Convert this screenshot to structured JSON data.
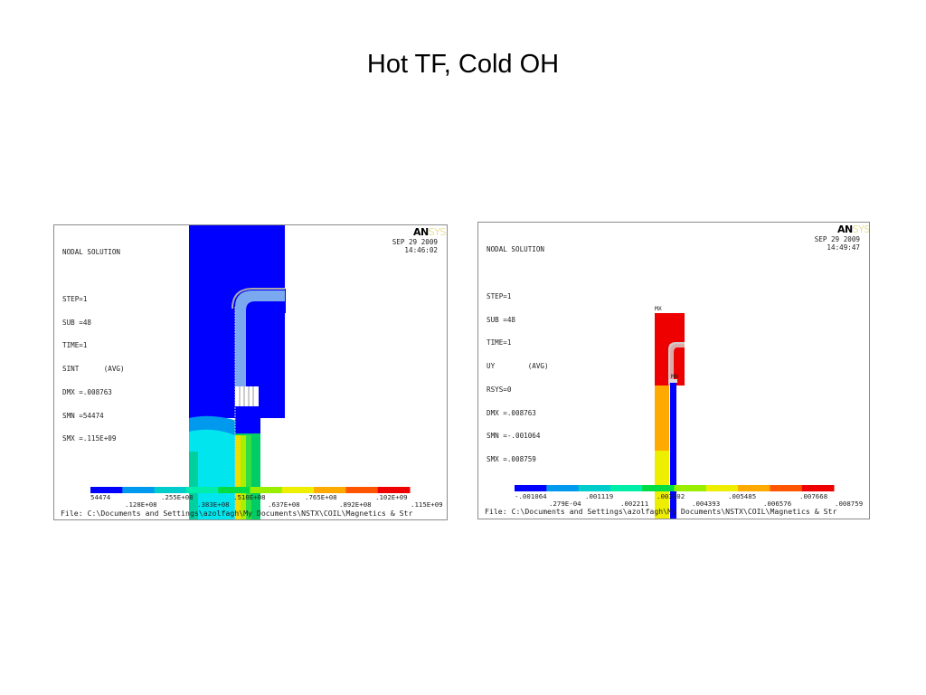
{
  "slide": {
    "title": "Hot TF, Cold OH"
  },
  "left_plot": {
    "logo": "AN",
    "logo_tail": "SYS",
    "info_lines": [
      "NODAL SOLUTION",
      "",
      "STEP=1",
      "SUB =48",
      "TIME=1",
      "SINT      (AVG)",
      "DMX =.008763",
      "SMN =54474",
      "SMX =.115E+09"
    ],
    "date": "SEP 29 2009",
    "time": "14:46:02",
    "legend_colors": [
      "#0000ff",
      "#0099ee",
      "#00cccc",
      "#00eeaa",
      "#00dd44",
      "#99ee00",
      "#eeee00",
      "#ffaa00",
      "#ff5500",
      "#ee0000"
    ],
    "legend_top_labels": [
      "54474",
      ".255E+08",
      ".510E+08",
      ".765E+08",
      ".102E+09"
    ],
    "legend_bottom_labels": [
      ".128E+08",
      ".383E+08",
      ".637E+08",
      ".892E+08",
      ".115E+09"
    ],
    "file": "File: C:\\Documents and Settings\\azolfagh\\My Documents\\NSTX\\COIL\\Magnetics & Str"
  },
  "right_plot": {
    "logo": "AN",
    "logo_tail": "SYS",
    "info_lines": [
      "NODAL SOLUTION",
      "",
      "STEP=1",
      "SUB =48",
      "TIME=1",
      "UY        (AVG)",
      "RSYS=0",
      "DMX =.008763",
      "SMN =-.001064",
      "SMX =.008759"
    ],
    "date": "SEP 29 2009",
    "time": "14:49:47",
    "tag_mx": "MX",
    "tag_mn": "MN",
    "legend_colors": [
      "#0000ff",
      "#0099ee",
      "#00cccc",
      "#00eeaa",
      "#00dd44",
      "#99ee00",
      "#eeee00",
      "#ffaa00",
      "#ff5500",
      "#ee0000"
    ],
    "legend_top_labels": [
      "-.001064",
      ".001119",
      ".003302",
      ".005485",
      ".007668"
    ],
    "legend_bottom_labels": [
      ".279E-04",
      ".002211",
      ".004393",
      ".006576",
      ".008759"
    ],
    "file": "File: C:\\Documents and Settings\\azolfagh\\My Documents\\NSTX\\COIL\\Magnetics & Str"
  }
}
